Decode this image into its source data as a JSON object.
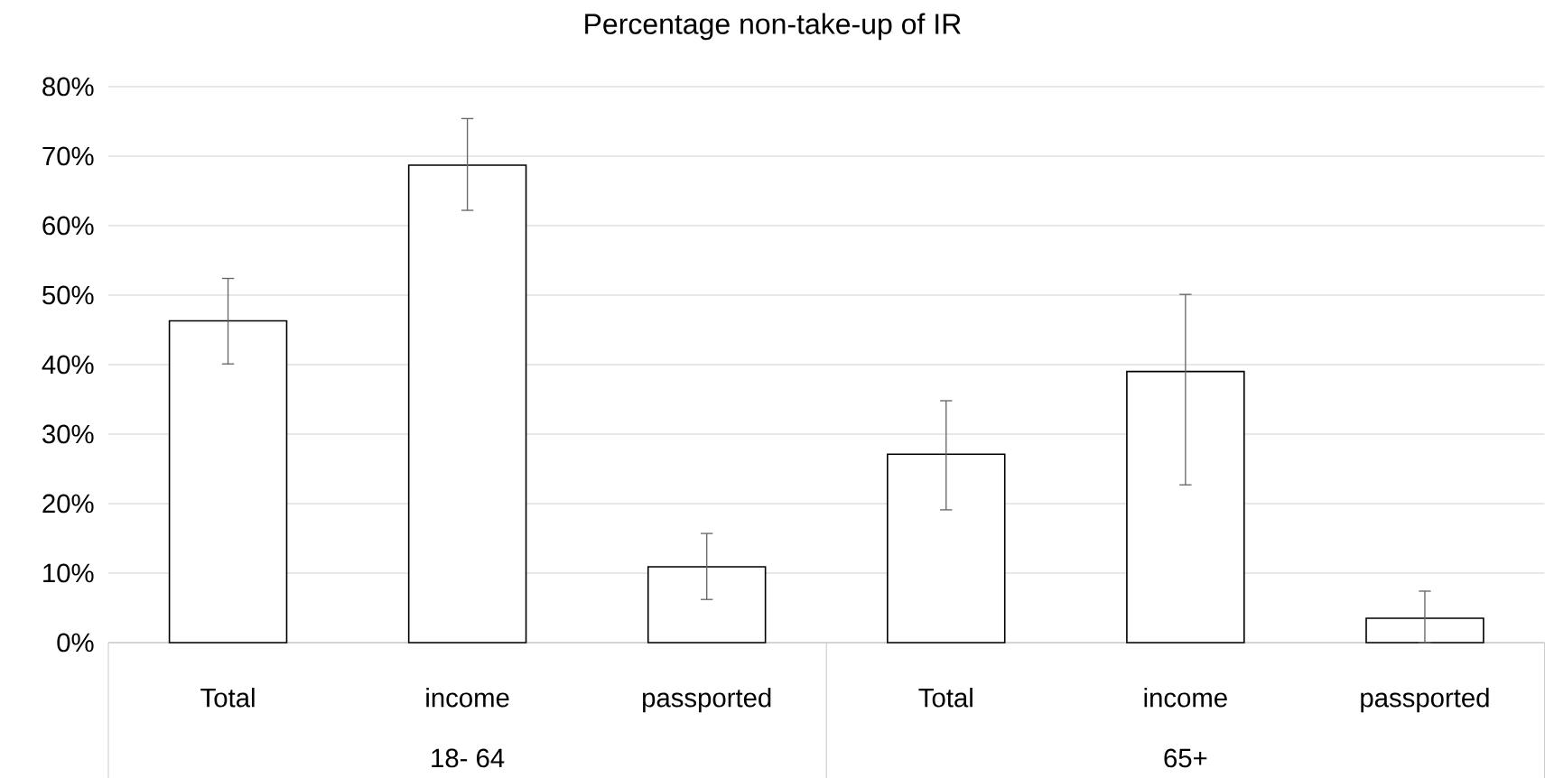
{
  "chart_data": {
    "type": "bar",
    "title": "Percentage non-take-up of IR",
    "categories": [
      "Total",
      "income",
      "passported",
      "Total",
      "income",
      "passported"
    ],
    "values": [
      46.3,
      68.7,
      10.9,
      27.1,
      39.0,
      3.5
    ],
    "errors": [
      [
        40.1,
        52.4
      ],
      [
        62.2,
        75.4
      ],
      [
        6.2,
        15.7
      ],
      [
        19.1,
        34.8
      ],
      [
        22.7,
        50.1
      ],
      [
        0,
        7.4
      ]
    ],
    "color": "#ffffff",
    "ylim": [
      0,
      80
    ],
    "yticks": [
      {
        "value": 0,
        "label": "0%"
      },
      {
        "value": 10,
        "label": "10%"
      },
      {
        "value": 20,
        "label": "20%"
      },
      {
        "value": 30,
        "label": "30%"
      },
      {
        "value": 40,
        "label": "40%"
      },
      {
        "value": 50,
        "label": "50%"
      },
      {
        "value": 60,
        "label": "60%"
      },
      {
        "value": 70,
        "label": "70%"
      },
      {
        "value": 80,
        "label": "80%"
      }
    ],
    "grid": "y",
    "annotations": [
      "18- 64",
      "65+"
    ]
  }
}
